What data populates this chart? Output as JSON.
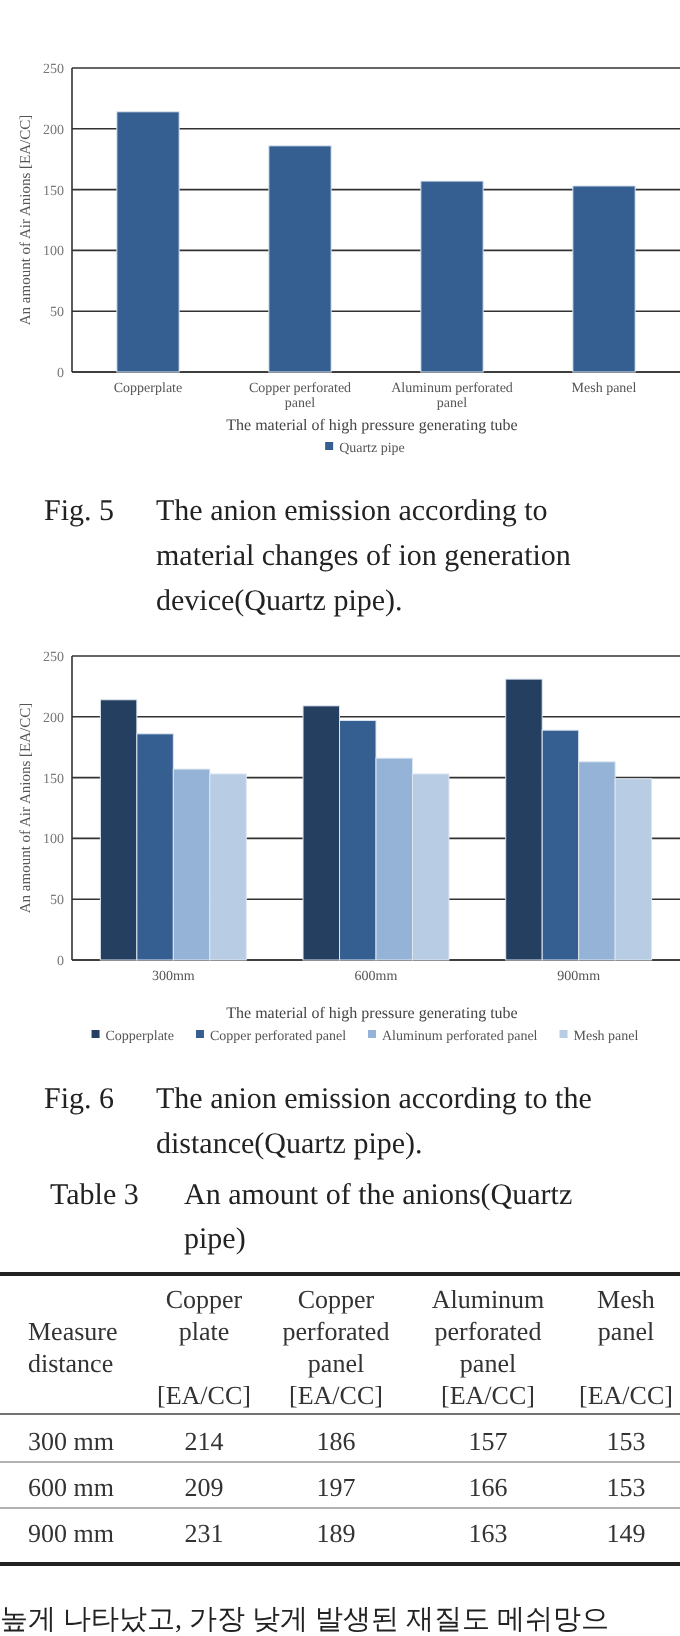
{
  "chart_data": [
    {
      "type": "bar",
      "xlabel": "The material of high pressure generating tube",
      "ylabel": "An amount of Air Anions [EA/CC]",
      "categories": [
        "Copperplate",
        "Copper perforated panel",
        "Aluminum perforated panel",
        "Mesh panel"
      ],
      "series": [
        {
          "name": "Quartz pipe",
          "color": "#365f91",
          "values": [
            214,
            186,
            157,
            153
          ]
        }
      ],
      "ylim": [
        0,
        250
      ],
      "yticks": [
        0,
        50,
        100,
        150,
        200,
        250
      ],
      "grid": "y",
      "legend": "bottom",
      "annotations": [
        "Fig. 5 The anion emission according to material changes of ion generation device(Quartz pipe)."
      ]
    },
    {
      "type": "bar",
      "xlabel": "The material of high pressure generating tube",
      "ylabel": "An amount of Air Anions [EA/CC]",
      "categories": [
        "300mm",
        "600mm",
        "900mm"
      ],
      "series": [
        {
          "name": "Copperplate",
          "color": "#243f60",
          "values": [
            214,
            209,
            231
          ]
        },
        {
          "name": "Copper perforated panel",
          "color": "#365f91",
          "values": [
            186,
            197,
            189
          ]
        },
        {
          "name": "Aluminum perforated panel",
          "color": "#95b3d7",
          "values": [
            157,
            166,
            163
          ]
        },
        {
          "name": "Mesh panel",
          "color": "#b8cce4",
          "values": [
            153,
            153,
            149
          ]
        }
      ],
      "ylim": [
        0,
        250
      ],
      "yticks": [
        0,
        50,
        100,
        150,
        200,
        250
      ],
      "grid": "y",
      "legend": "bottom",
      "annotations": [
        "Fig. 6 The anion emission according to the distance(Quartz pipe)."
      ]
    },
    {
      "type": "other",
      "data_labels": true,
      "title": "Table 3 An amount of the anions(Quartz pipe)",
      "xlabel": "Measure distance",
      "categories": [
        "300 mm",
        "600 mm",
        "900 mm"
      ],
      "series": [
        {
          "name": "Copper plate [EA/CC]",
          "values": [
            214,
            209,
            231
          ]
        },
        {
          "name": "Copper perforated panel [EA/CC]",
          "values": [
            186,
            197,
            189
          ]
        },
        {
          "name": "Aluminum perforated panel [EA/CC]",
          "values": [
            157,
            166,
            163
          ]
        },
        {
          "name": "Mesh panel [EA/CC]",
          "values": [
            153,
            153,
            149
          ]
        }
      ],
      "annotations": [
        "높게 나타났고, 가장 낮게 발생된 재질도 메쉬망으"
      ]
    }
  ]
}
